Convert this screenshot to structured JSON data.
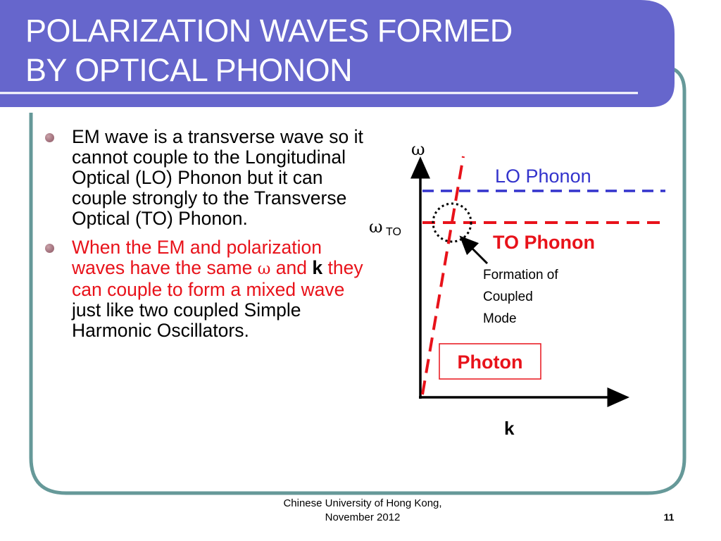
{
  "title": {
    "line1": "POLARIZATION WAVES FORMED",
    "line2": "BY OPTICAL PHONON"
  },
  "bullets": [
    {
      "text": "EM wave is a transverse wave so it cannot couple to the Longitudinal Optical (LO) Phonon but it can couple strongly to the Transverse Optical (TO) Phonon."
    },
    {
      "red_a": "When the EM and polarization waves have the same ",
      "omega": "ω",
      "red_b": " and ",
      "k": "k",
      "red_c": " they can couple to form a mixed wave",
      "black": " just like two coupled Simple Harmonic Oscillators."
    }
  ],
  "diagram": {
    "y_axis_label": "ω",
    "x_axis_label": "k",
    "omega_to_symbol": "ω",
    "omega_to_subscript": "TO",
    "lo_label": "LO Phonon",
    "to_label": "TO Phonon",
    "photon_label": "Photon",
    "annotation": [
      "Formation of",
      "Coupled",
      "Mode"
    ],
    "colors": {
      "lo": "#3333cc",
      "to": "#e8121a",
      "photon": "#e8121a",
      "axes": "#000000"
    }
  },
  "theme": {
    "title_bar": "#6666cc",
    "frame_border": "#669999"
  },
  "footer": {
    "line1": "Chinese University of Hong Kong,",
    "line2": "November 2012",
    "page_number": "11"
  }
}
